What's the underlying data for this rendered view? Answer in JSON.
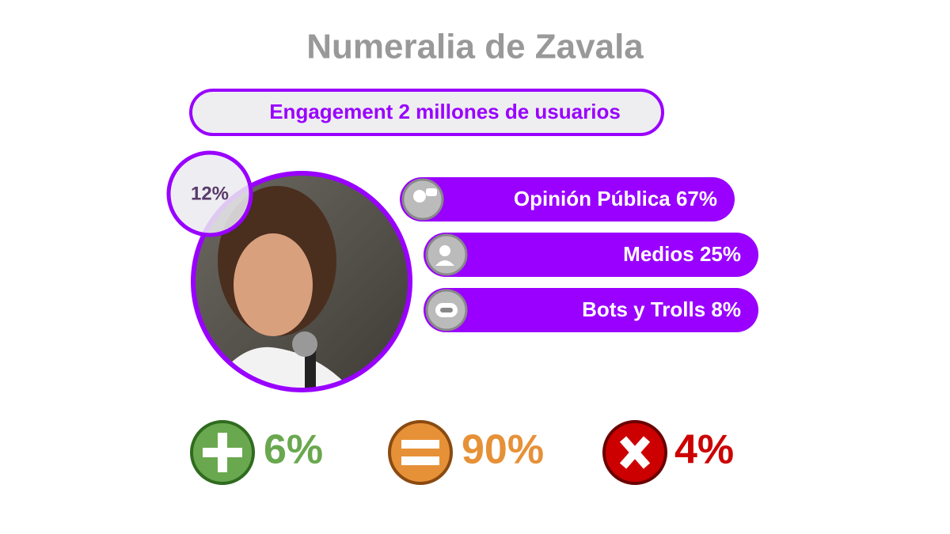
{
  "header": {
    "title": "Numeralia de Zavala"
  },
  "engagement": "Engagement 2 millones de usuarios",
  "photo_badge": "12%",
  "segments": [
    "Opinión Pública 67%",
    "Medios 25%",
    "Bots y Trolls 8%"
  ],
  "sentiment": {
    "positive": "6%",
    "neutral": "90%",
    "negative": "4%"
  }
}
